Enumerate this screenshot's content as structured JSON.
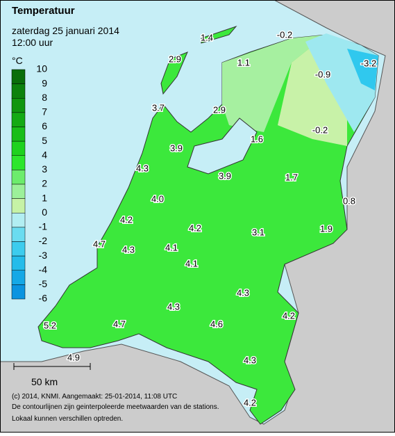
{
  "header": {
    "title": "Temperatuur",
    "date": "zaterdag 25 januari 2014",
    "time": "12:00 uur"
  },
  "legend": {
    "unit": "°C",
    "ticks": [
      "10",
      "9",
      "8",
      "7",
      "6",
      "5",
      "4",
      "3",
      "2",
      "1",
      "0",
      "-1",
      "-2",
      "-3",
      "-4",
      "-5",
      "-6"
    ]
  },
  "stations": [
    {
      "label": "1.4"
    },
    {
      "label": "-0.2"
    },
    {
      "label": "2.9"
    },
    {
      "label": "1.1"
    },
    {
      "label": "-0.9"
    },
    {
      "label": "-3.2"
    },
    {
      "label": "3.7"
    },
    {
      "label": "2.9"
    },
    {
      "label": "-0.2"
    },
    {
      "label": "1.6"
    },
    {
      "label": "3.9"
    },
    {
      "label": "4.3"
    },
    {
      "label": "3.9"
    },
    {
      "label": "1.7"
    },
    {
      "label": "4.0"
    },
    {
      "label": "0.8"
    },
    {
      "label": "4.2"
    },
    {
      "label": "4.2"
    },
    {
      "label": "3.1"
    },
    {
      "label": "1.9"
    },
    {
      "label": "4.7"
    },
    {
      "label": "4.3"
    },
    {
      "label": "4.1"
    },
    {
      "label": "4.1"
    },
    {
      "label": "4.3"
    },
    {
      "label": "4.3"
    },
    {
      "label": "4.2"
    },
    {
      "label": "5.2"
    },
    {
      "label": "4.7"
    },
    {
      "label": "4.6"
    },
    {
      "label": "4.3"
    },
    {
      "label": "4.9"
    },
    {
      "label": "4.2"
    }
  ],
  "scale_bar": {
    "label": "50 km"
  },
  "footer": {
    "lines": [
      "(c) 2014, KNMI. Aangemaakt: 25-01-2014, 11:08 UTC",
      "De contourlijnen zijn geinterpoleerde meetwaarden van de stations.",
      "Lokaal kunnen verschillen optreden."
    ]
  }
}
